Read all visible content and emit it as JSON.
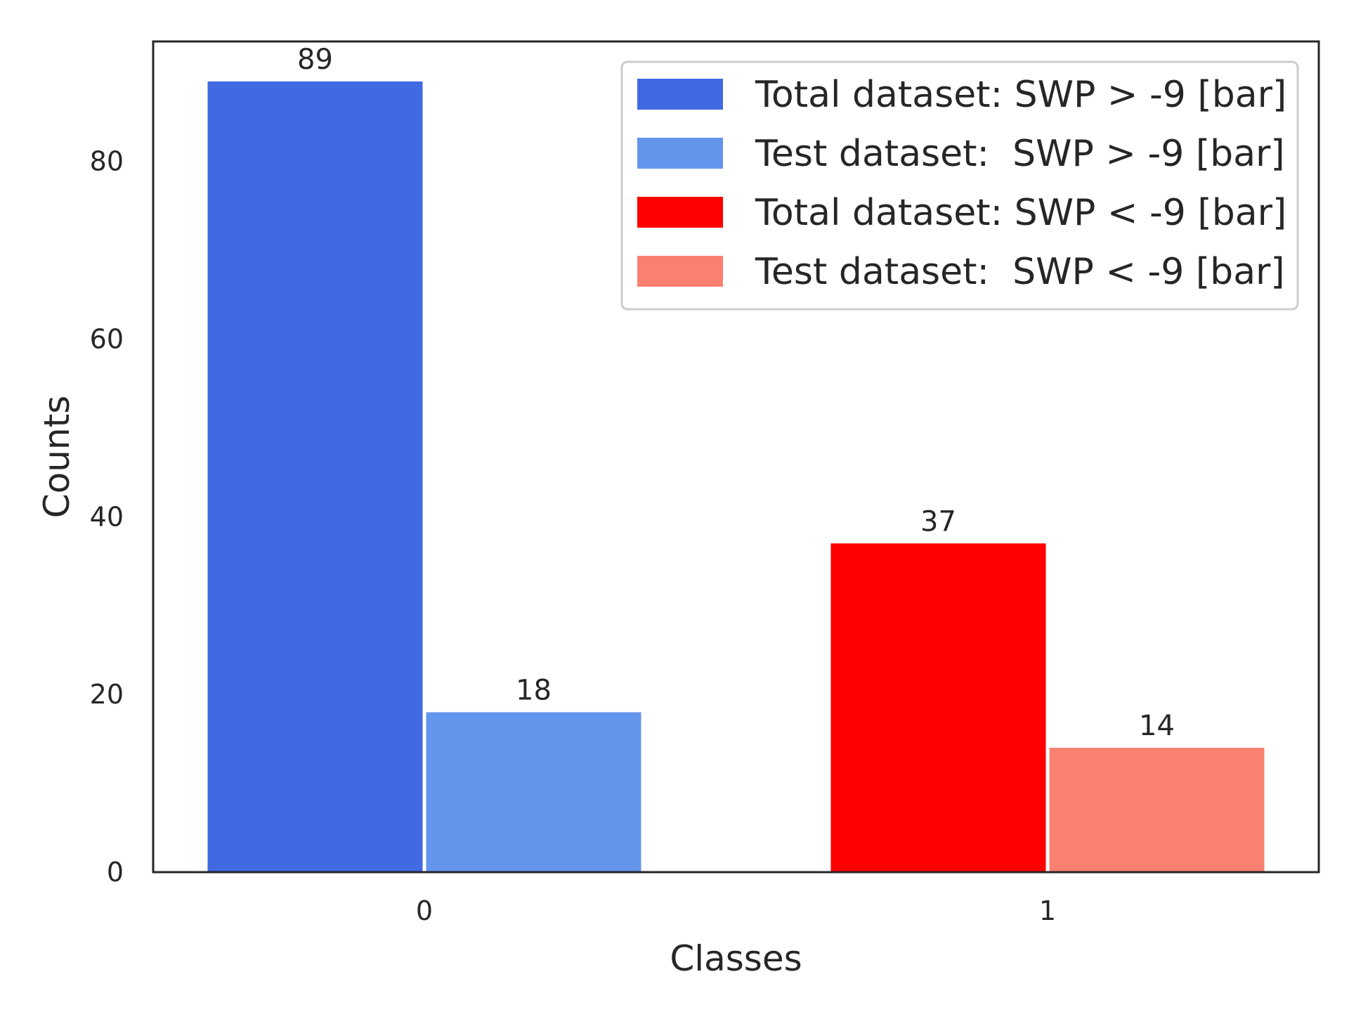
{
  "chart_data": {
    "type": "bar",
    "title": "",
    "xlabel": "Classes",
    "ylabel": "Counts",
    "categories": [
      "0",
      "1"
    ],
    "ylim": [
      0,
      93.5
    ],
    "yticks": [
      0,
      20,
      40,
      60,
      80
    ],
    "grid": false,
    "legend_position": "top-right",
    "series": [
      {
        "name": "Total dataset: SWP > -9 [bar]",
        "color": "#4169E1",
        "category": "0",
        "slot": 0,
        "value": 89
      },
      {
        "name": "Test dataset:  SWP > -9 [bar]",
        "color": "#6495ED",
        "category": "0",
        "slot": 1,
        "value": 18
      },
      {
        "name": "Total dataset: SWP < -9 [bar]",
        "color": "#FF0000",
        "category": "1",
        "slot": 0,
        "value": 37
      },
      {
        "name": "Test dataset:  SWP < -9 [bar]",
        "color": "#FA8072",
        "category": "1",
        "slot": 1,
        "value": 14
      }
    ]
  }
}
